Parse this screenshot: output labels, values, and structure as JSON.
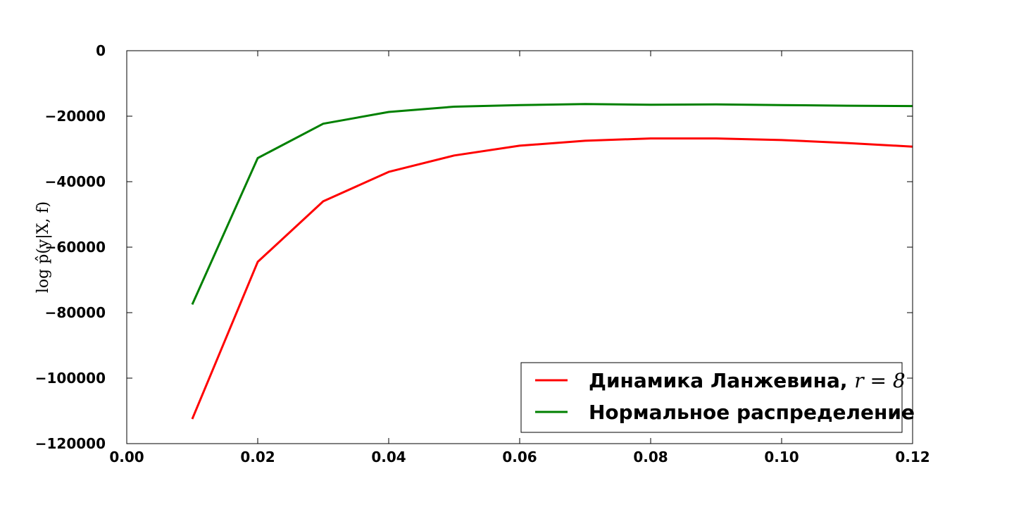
{
  "chart_data": {
    "type": "line",
    "title": "",
    "xlabel": "",
    "ylabel": "log p̂(y|X, f)",
    "xlim": [
      0.0,
      0.12
    ],
    "ylim": [
      -120000,
      0
    ],
    "xticks": [
      "0.00",
      "0.02",
      "0.04",
      "0.06",
      "0.08",
      "0.10",
      "0.12"
    ],
    "yticks": [
      "0",
      "−20000",
      "−40000",
      "−60000",
      "−80000",
      "−100000",
      "−120000"
    ],
    "grid": false,
    "legend_position": "bottom-right",
    "x": [
      0.01,
      0.02,
      0.03,
      0.04,
      0.05,
      0.06,
      0.07,
      0.08,
      0.09,
      0.1,
      0.11,
      0.12
    ],
    "series": [
      {
        "name": "Динамика Ланжевина, r = 8",
        "name_text": "Динамика Ланжевина, ",
        "name_math": "r = 8",
        "color": "#ff0000",
        "values": [
          -112500,
          -64500,
          -46000,
          -37000,
          -32000,
          -29000,
          -27500,
          -26800,
          -26800,
          -27300,
          -28200,
          -29300
        ]
      },
      {
        "name": "Нормальное распределение",
        "name_text": "Нормальное распределение",
        "name_math": "",
        "color": "#008000",
        "values": [
          -77500,
          -32800,
          -22300,
          -18700,
          -17100,
          -16600,
          -16300,
          -16500,
          -16400,
          -16600,
          -16800,
          -16900
        ]
      }
    ]
  }
}
